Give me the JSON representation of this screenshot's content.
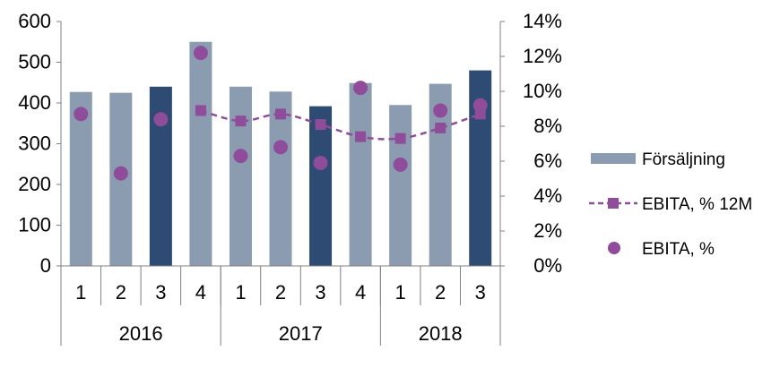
{
  "chart_data": {
    "type": "bar",
    "categories": [
      "1",
      "2",
      "3",
      "4",
      "1",
      "2",
      "3",
      "4",
      "1",
      "2",
      "3"
    ],
    "groups": [
      {
        "label": "2016",
        "count": 4
      },
      {
        "label": "2017",
        "count": 4
      },
      {
        "label": "2018",
        "count": 3
      }
    ],
    "series": [
      {
        "name": "Försäljning",
        "kind": "bar",
        "axis": "left",
        "values": [
          427,
          425,
          440,
          550,
          440,
          428,
          392,
          449,
          395,
          447,
          480
        ],
        "highlight": [
          false,
          false,
          true,
          false,
          false,
          false,
          true,
          false,
          false,
          false,
          true
        ]
      },
      {
        "name": "EBITA, % 12M",
        "kind": "line",
        "axis": "right",
        "values": [
          null,
          null,
          null,
          8.9,
          8.3,
          8.7,
          8.1,
          7.4,
          7.3,
          7.9,
          8.7
        ]
      },
      {
        "name": "EBITA, %",
        "kind": "scatter",
        "axis": "right",
        "values": [
          8.7,
          5.3,
          8.4,
          12.2,
          6.3,
          6.8,
          5.9,
          10.2,
          5.8,
          8.9,
          9.2
        ]
      }
    ],
    "y_left": {
      "min": 0,
      "max": 600,
      "ticks": [
        "0",
        "100",
        "200",
        "300",
        "400",
        "500",
        "600"
      ]
    },
    "y_right": {
      "min": 0,
      "max": 14,
      "ticks": [
        "0%",
        "2%",
        "4%",
        "6%",
        "8%",
        "10%",
        "12%",
        "14%"
      ]
    },
    "colors": {
      "bar": "#8b9bb0",
      "bar_highlight": "#2e4b73",
      "line": "#8e4c9a",
      "marker": "#8e4c9a",
      "axis": "#808080"
    },
    "legend_position": "right",
    "grid": false
  }
}
